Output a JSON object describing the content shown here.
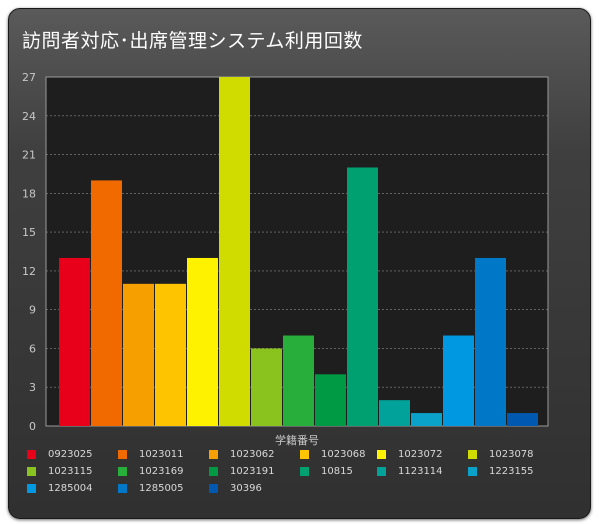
{
  "title": "訪問者対応･出席管理システム利用回数",
  "chart_data": {
    "type": "bar",
    "xlabel": "学籍番号",
    "ylabel": "",
    "ylim": [
      0,
      27
    ],
    "yticks": [
      0,
      3,
      6,
      9,
      12,
      15,
      18,
      21,
      24,
      27
    ],
    "grid": true,
    "legend": "bottom",
    "categories": [
      "0923025",
      "1023011",
      "1023062",
      "1023068",
      "1023072",
      "1023078",
      "1023115",
      "1023169",
      "1023191",
      "10815",
      "1123114",
      "1223155",
      "1285004",
      "1285005",
      "30396"
    ],
    "values": [
      13,
      19,
      11,
      11,
      13,
      27,
      6,
      7,
      4,
      20,
      2,
      1,
      7,
      13,
      1
    ],
    "colors": [
      "#e8001a",
      "#f06a00",
      "#f5a000",
      "#ffc400",
      "#fff200",
      "#d0dc00",
      "#8ac21e",
      "#28ae3a",
      "#009a44",
      "#00a070",
      "#00a29a",
      "#0aa2c8",
      "#0098e0",
      "#0078c8",
      "#0058b0"
    ]
  }
}
